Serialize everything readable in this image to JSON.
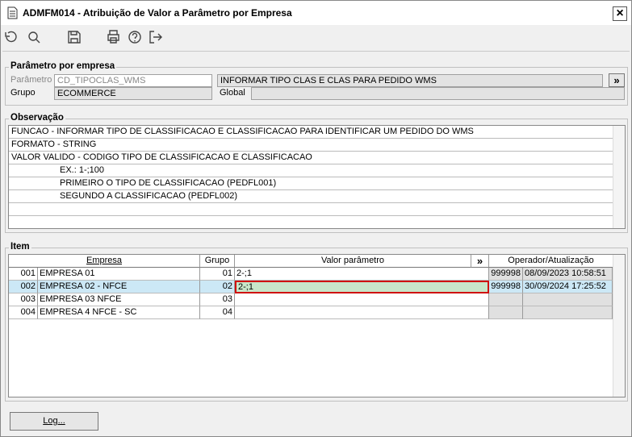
{
  "window": {
    "title": "ADMFM014 - Atribuição de Valor a Parâmetro por Empresa",
    "close": "×"
  },
  "parametro_group": {
    "legend": "Parâmetro por empresa",
    "parametro_label": "Parâmetro",
    "parametro_value": "CD_TIPOCLAS_WMS",
    "description": "INFORMAR TIPO CLAS E CLAS PARA PEDIDO WMS",
    "more_button": "»",
    "grupo_label": "Grupo",
    "grupo_value": "ECOMMERCE",
    "global_label": "Global"
  },
  "observacao": {
    "legend": "Observação",
    "lines": [
      "FUNCAO - INFORMAR TIPO DE CLASSIFICACAO E CLASSIFICACAO PARA IDENTIFICAR UM PEDIDO DO WMS",
      "FORMATO - STRING",
      "VALOR VALIDO - CODIGO TIPO DE CLASSIFICACAO E CLASSIFICACAO",
      "EX.: 1-;100",
      "PRIMEIRO O TIPO DE CLASSIFICACAO (PEDFL001)",
      "SEGUNDO A CLASSIFICACAO (PEDFL002)"
    ]
  },
  "item": {
    "legend": "Item",
    "columns": [
      "Empresa",
      "Grupo",
      "Valor parâmetro",
      "»",
      "Operador/Atualização"
    ],
    "rows": [
      {
        "code": "001",
        "empresa": "EMPRESA 01",
        "grupo": "01",
        "valor": "2-;1",
        "operador": "999998",
        "atualizacao": "08/09/2023 10:58:51"
      },
      {
        "code": "002",
        "empresa": "EMPRESA 02 - NFCE",
        "grupo": "02",
        "valor": "2-;1",
        "operador": "999998",
        "atualizacao": "30/09/2024 17:25:52"
      },
      {
        "code": "003",
        "empresa": "EMPRESA 03 NFCE",
        "grupo": "03"
      },
      {
        "code": "004",
        "empresa": "EMPRESA 4 NFCE - SC",
        "grupo": "04"
      }
    ]
  },
  "log_button": "Log..."
}
